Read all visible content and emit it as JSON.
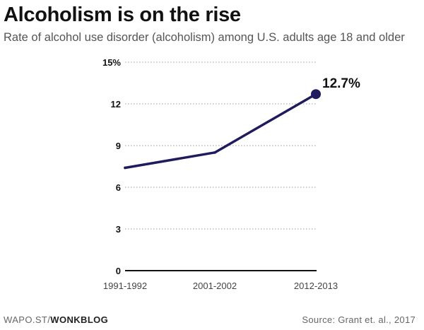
{
  "header": {
    "title": "Alcoholism is on the rise",
    "subtitle": "Rate of alcohol use disorder (alcoholism) among U.S. adults age 18 and older"
  },
  "chart_data": {
    "type": "line",
    "title": "Alcoholism is on the rise",
    "subtitle": "Rate of alcohol use disorder (alcoholism) among U.S. adults age 18 and older",
    "xlabel": "",
    "ylabel": "",
    "categories": [
      "1991-1992",
      "2001-2002",
      "2012-2013"
    ],
    "series": [
      {
        "values": [
          7.4,
          8.5,
          12.7
        ]
      }
    ],
    "y_ticks": [
      0,
      3,
      6,
      9,
      12,
      15
    ],
    "y_tick_labels": [
      "0",
      "3",
      "6",
      "9",
      "12",
      "15%"
    ],
    "ylim": [
      0,
      15
    ],
    "grid": true,
    "annotations": [
      {
        "category": "2012-2013",
        "value": 12.7,
        "text": "12.7%"
      }
    ],
    "colors": {
      "line": "#1f1b5c",
      "grid": "#9a9a9a",
      "baseline": "#111111",
      "tick_label": "#111111",
      "x_label": "#444444"
    }
  },
  "footer": {
    "credit_prefix": "WAPO.ST/",
    "credit_strong": "WONKBLOG",
    "source": "Source: Grant et. al., 2017"
  }
}
